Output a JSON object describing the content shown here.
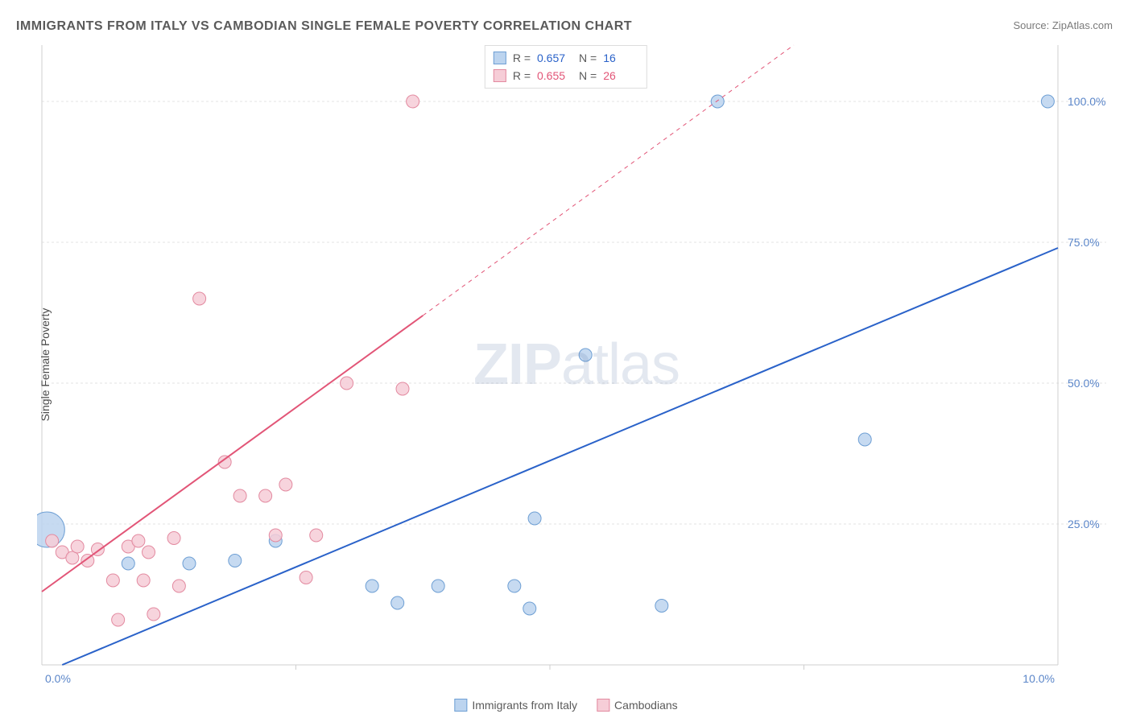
{
  "meta": {
    "title": "IMMIGRANTS FROM ITALY VS CAMBODIAN SINGLE FEMALE POVERTY CORRELATION CHART",
    "source_prefix": "Source: ",
    "source": "ZipAtlas.com",
    "watermark_bold": "ZIP",
    "watermark_rest": "atlas"
  },
  "chart": {
    "type": "scatter",
    "xlim": [
      0,
      10
    ],
    "ylim": [
      0,
      110
    ],
    "y_ticks": [
      25,
      50,
      75,
      100
    ],
    "y_tick_labels": [
      "25.0%",
      "50.0%",
      "75.0%",
      "100.0%"
    ],
    "x_tick_left": "0.0%",
    "x_tick_right": "10.0%",
    "x_inner_ticks": [
      2.5,
      5.0,
      7.5
    ],
    "y_axis_label": "Single Female Poverty",
    "grid_color": "#e3e3e3",
    "axis_color": "#cfcfcf",
    "background_color": "#ffffff",
    "tick_label_color": "#5b86c9",
    "axis_label_color": "#4a4a4a",
    "axis_label_fontsize": 14,
    "title_fontsize": 16,
    "title_color": "#5a5a5a",
    "series": [
      {
        "id": "italy",
        "label": "Immigrants from Italy",
        "marker_fill": "#bcd4ef",
        "marker_stroke": "#6e9fd4",
        "line_color": "#2a62c9",
        "line_width": 2,
        "default_r": 8,
        "r_values": {
          "0": 22
        },
        "R": "0.657",
        "N": "16",
        "trend": {
          "x1": 0.2,
          "y1": 0,
          "x2": 10,
          "y2": 74
        },
        "dashed_from_x": null,
        "points": [
          {
            "x": 0.05,
            "y": 24
          },
          {
            "x": 0.85,
            "y": 18
          },
          {
            "x": 1.45,
            "y": 18
          },
          {
            "x": 1.9,
            "y": 18.5
          },
          {
            "x": 2.3,
            "y": 22
          },
          {
            "x": 3.25,
            "y": 14
          },
          {
            "x": 3.5,
            "y": 11
          },
          {
            "x": 3.9,
            "y": 14
          },
          {
            "x": 4.65,
            "y": 14
          },
          {
            "x": 4.8,
            "y": 10
          },
          {
            "x": 4.85,
            "y": 26
          },
          {
            "x": 5.35,
            "y": 55
          },
          {
            "x": 6.1,
            "y": 10.5
          },
          {
            "x": 6.65,
            "y": 100
          },
          {
            "x": 8.1,
            "y": 40
          },
          {
            "x": 9.9,
            "y": 100
          }
        ]
      },
      {
        "id": "cambodian",
        "label": "Cambodians",
        "marker_fill": "#f6cdd7",
        "marker_stroke": "#e38aa0",
        "line_color": "#e25577",
        "line_width": 2,
        "default_r": 8,
        "R": "0.655",
        "N": "26",
        "trend": {
          "x1": 0,
          "y1": 13,
          "x2": 3.75,
          "y2": 62
        },
        "dashed_extend": {
          "x2": 7.4,
          "y2": 110
        },
        "points": [
          {
            "x": 0.1,
            "y": 22
          },
          {
            "x": 0.2,
            "y": 20
          },
          {
            "x": 0.3,
            "y": 19
          },
          {
            "x": 0.35,
            "y": 21
          },
          {
            "x": 0.45,
            "y": 18.5
          },
          {
            "x": 0.55,
            "y": 20.5
          },
          {
            "x": 0.7,
            "y": 15
          },
          {
            "x": 0.75,
            "y": 8
          },
          {
            "x": 0.85,
            "y": 21
          },
          {
            "x": 0.95,
            "y": 22
          },
          {
            "x": 1.0,
            "y": 15
          },
          {
            "x": 1.05,
            "y": 20
          },
          {
            "x": 1.1,
            "y": 9
          },
          {
            "x": 1.3,
            "y": 22.5
          },
          {
            "x": 1.35,
            "y": 14
          },
          {
            "x": 1.55,
            "y": 65
          },
          {
            "x": 1.8,
            "y": 36
          },
          {
            "x": 1.95,
            "y": 30
          },
          {
            "x": 2.2,
            "y": 30
          },
          {
            "x": 2.3,
            "y": 23
          },
          {
            "x": 2.4,
            "y": 32
          },
          {
            "x": 2.6,
            "y": 15.5
          },
          {
            "x": 2.7,
            "y": 23
          },
          {
            "x": 3.0,
            "y": 50
          },
          {
            "x": 3.55,
            "y": 49
          },
          {
            "x": 3.65,
            "y": 100
          }
        ]
      }
    ]
  },
  "legend_top": {
    "r_label": "R =",
    "n_label": "N ="
  }
}
